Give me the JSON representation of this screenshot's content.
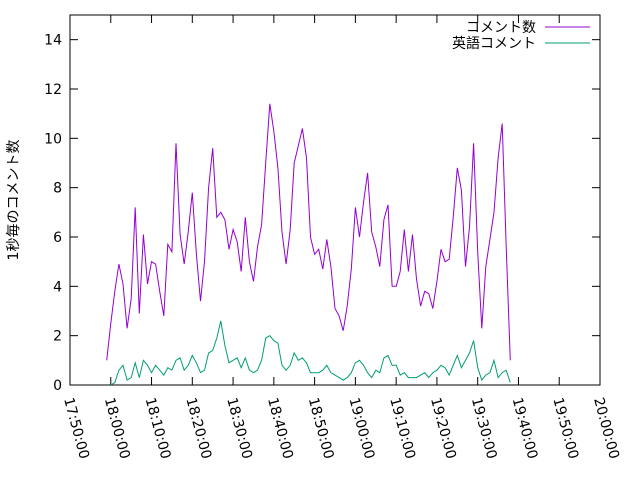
{
  "chart_data": {
    "type": "line",
    "title": "",
    "xlabel": "",
    "ylabel": "1秒毎のコメント数",
    "xlim": [
      "17:50:00",
      "20:00:00"
    ],
    "ylim": [
      0,
      15
    ],
    "yticks": [
      0,
      2,
      4,
      6,
      8,
      10,
      12,
      14
    ],
    "xticks": [
      "17:50:00",
      "18:00:00",
      "18:10:00",
      "18:20:00",
      "18:30:00",
      "18:40:00",
      "18:50:00",
      "19:00:00",
      "19:10:00",
      "19:20:00",
      "19:30:00",
      "19:40:00",
      "19:50:00",
      "20:00:00"
    ],
    "legend_position": "top-right",
    "grid": false,
    "series": [
      {
        "name": "コメント数",
        "color": "#9400d3",
        "points": [
          [
            "17:59:00",
            1.0
          ],
          [
            "18:00:00",
            2.5
          ],
          [
            "18:01:00",
            3.8
          ],
          [
            "18:02:00",
            4.9
          ],
          [
            "18:03:00",
            4.1
          ],
          [
            "18:04:00",
            2.3
          ],
          [
            "18:05:00",
            3.5
          ],
          [
            "18:06:00",
            7.2
          ],
          [
            "18:07:00",
            2.9
          ],
          [
            "18:08:00",
            6.1
          ],
          [
            "18:09:00",
            4.1
          ],
          [
            "18:10:00",
            5.0
          ],
          [
            "18:11:00",
            4.9
          ],
          [
            "18:12:00",
            3.8
          ],
          [
            "18:13:00",
            2.8
          ],
          [
            "18:14:00",
            5.7
          ],
          [
            "18:15:00",
            5.4
          ],
          [
            "18:16:00",
            9.8
          ],
          [
            "18:17:00",
            6.1
          ],
          [
            "18:18:00",
            4.9
          ],
          [
            "18:19:00",
            6.2
          ],
          [
            "18:20:00",
            7.8
          ],
          [
            "18:21:00",
            5.3
          ],
          [
            "18:22:00",
            3.4
          ],
          [
            "18:23:00",
            5.0
          ],
          [
            "18:24:00",
            8.0
          ],
          [
            "18:25:00",
            9.6
          ],
          [
            "18:26:00",
            6.8
          ],
          [
            "18:27:00",
            7.0
          ],
          [
            "18:28:00",
            6.7
          ],
          [
            "18:29:00",
            5.5
          ],
          [
            "18:30:00",
            6.3
          ],
          [
            "18:31:00",
            5.8
          ],
          [
            "18:32:00",
            4.6
          ],
          [
            "18:33:00",
            6.8
          ],
          [
            "18:34:00",
            5.0
          ],
          [
            "18:35:00",
            4.2
          ],
          [
            "18:36:00",
            5.6
          ],
          [
            "18:37:00",
            6.5
          ],
          [
            "18:38:00",
            9.0
          ],
          [
            "18:39:00",
            11.4
          ],
          [
            "18:40:00",
            10.3
          ],
          [
            "18:41:00",
            8.8
          ],
          [
            "18:42:00",
            6.2
          ],
          [
            "18:43:00",
            4.9
          ],
          [
            "18:44:00",
            6.3
          ],
          [
            "18:45:00",
            9.0
          ],
          [
            "18:46:00",
            9.7
          ],
          [
            "18:47:00",
            10.4
          ],
          [
            "18:48:00",
            9.2
          ],
          [
            "18:49:00",
            6.0
          ],
          [
            "18:50:00",
            5.3
          ],
          [
            "18:51:00",
            5.5
          ],
          [
            "18:52:00",
            4.7
          ],
          [
            "18:53:00",
            5.9
          ],
          [
            "18:54:00",
            4.8
          ],
          [
            "18:55:00",
            3.1
          ],
          [
            "18:56:00",
            2.8
          ],
          [
            "18:57:00",
            2.2
          ],
          [
            "18:58:00",
            3.2
          ],
          [
            "18:59:00",
            4.7
          ],
          [
            "19:00:00",
            7.2
          ],
          [
            "19:01:00",
            6.0
          ],
          [
            "19:02:00",
            7.4
          ],
          [
            "19:03:00",
            8.6
          ],
          [
            "19:04:00",
            6.2
          ],
          [
            "19:05:00",
            5.6
          ],
          [
            "19:06:00",
            4.8
          ],
          [
            "19:07:00",
            6.7
          ],
          [
            "19:08:00",
            7.3
          ],
          [
            "19:09:00",
            4.0
          ],
          [
            "19:10:00",
            4.0
          ],
          [
            "19:11:00",
            4.6
          ],
          [
            "19:12:00",
            6.3
          ],
          [
            "19:13:00",
            4.6
          ],
          [
            "19:14:00",
            6.1
          ],
          [
            "19:15:00",
            4.3
          ],
          [
            "19:16:00",
            3.2
          ],
          [
            "19:17:00",
            3.8
          ],
          [
            "19:18:00",
            3.7
          ],
          [
            "19:19:00",
            3.1
          ],
          [
            "19:20:00",
            4.2
          ],
          [
            "19:21:00",
            5.5
          ],
          [
            "19:22:00",
            5.0
          ],
          [
            "19:23:00",
            5.1
          ],
          [
            "19:24:00",
            6.8
          ],
          [
            "19:25:00",
            8.8
          ],
          [
            "19:26:00",
            7.9
          ],
          [
            "19:27:00",
            4.8
          ],
          [
            "19:28:00",
            6.4
          ],
          [
            "19:29:00",
            9.8
          ],
          [
            "19:30:00",
            5.4
          ],
          [
            "19:31:00",
            2.3
          ],
          [
            "19:32:00",
            4.8
          ],
          [
            "19:33:00",
            5.9
          ],
          [
            "19:34:00",
            7.0
          ],
          [
            "19:35:00",
            9.2
          ],
          [
            "19:36:00",
            10.6
          ],
          [
            "19:37:00",
            5.6
          ],
          [
            "19:38:00",
            1.0
          ]
        ]
      },
      {
        "name": "英語コメント",
        "color": "#009e73",
        "points": [
          [
            "18:00:00",
            0.0
          ],
          [
            "18:01:00",
            0.1
          ],
          [
            "18:02:00",
            0.6
          ],
          [
            "18:03:00",
            0.8
          ],
          [
            "18:04:00",
            0.2
          ],
          [
            "18:05:00",
            0.3
          ],
          [
            "18:06:00",
            0.9
          ],
          [
            "18:07:00",
            0.3
          ],
          [
            "18:08:00",
            1.0
          ],
          [
            "18:09:00",
            0.8
          ],
          [
            "18:10:00",
            0.5
          ],
          [
            "18:11:00",
            0.8
          ],
          [
            "18:12:00",
            0.6
          ],
          [
            "18:13:00",
            0.4
          ],
          [
            "18:14:00",
            0.7
          ],
          [
            "18:15:00",
            0.6
          ],
          [
            "18:16:00",
            1.0
          ],
          [
            "18:17:00",
            1.1
          ],
          [
            "18:18:00",
            0.6
          ],
          [
            "18:19:00",
            0.8
          ],
          [
            "18:20:00",
            1.2
          ],
          [
            "18:21:00",
            0.9
          ],
          [
            "18:22:00",
            0.5
          ],
          [
            "18:23:00",
            0.6
          ],
          [
            "18:24:00",
            1.3
          ],
          [
            "18:25:00",
            1.4
          ],
          [
            "18:26:00",
            1.9
          ],
          [
            "18:27:00",
            2.6
          ],
          [
            "18:28:00",
            1.6
          ],
          [
            "18:29:00",
            0.9
          ],
          [
            "18:30:00",
            1.0
          ],
          [
            "18:31:00",
            1.1
          ],
          [
            "18:32:00",
            0.7
          ],
          [
            "18:33:00",
            1.1
          ],
          [
            "18:34:00",
            0.6
          ],
          [
            "18:35:00",
            0.5
          ],
          [
            "18:36:00",
            0.6
          ],
          [
            "18:37:00",
            1.0
          ],
          [
            "18:38:00",
            1.9
          ],
          [
            "18:39:00",
            2.0
          ],
          [
            "18:40:00",
            1.8
          ],
          [
            "18:41:00",
            1.7
          ],
          [
            "18:42:00",
            0.8
          ],
          [
            "18:43:00",
            0.6
          ],
          [
            "18:44:00",
            0.8
          ],
          [
            "18:45:00",
            1.3
          ],
          [
            "18:46:00",
            1.0
          ],
          [
            "18:47:00",
            1.1
          ],
          [
            "18:48:00",
            0.9
          ],
          [
            "18:49:00",
            0.5
          ],
          [
            "18:50:00",
            0.5
          ],
          [
            "18:51:00",
            0.5
          ],
          [
            "18:52:00",
            0.6
          ],
          [
            "18:53:00",
            0.8
          ],
          [
            "18:54:00",
            0.5
          ],
          [
            "18:55:00",
            0.4
          ],
          [
            "18:56:00",
            0.3
          ],
          [
            "18:57:00",
            0.2
          ],
          [
            "18:58:00",
            0.3
          ],
          [
            "18:59:00",
            0.5
          ],
          [
            "19:00:00",
            0.9
          ],
          [
            "19:01:00",
            1.0
          ],
          [
            "19:02:00",
            0.8
          ],
          [
            "19:03:00",
            0.5
          ],
          [
            "19:04:00",
            0.3
          ],
          [
            "19:05:00",
            0.6
          ],
          [
            "19:06:00",
            0.5
          ],
          [
            "19:07:00",
            1.1
          ],
          [
            "19:08:00",
            1.2
          ],
          [
            "19:09:00",
            0.8
          ],
          [
            "19:10:00",
            0.8
          ],
          [
            "19:11:00",
            0.4
          ],
          [
            "19:12:00",
            0.5
          ],
          [
            "19:13:00",
            0.3
          ],
          [
            "19:14:00",
            0.3
          ],
          [
            "19:15:00",
            0.3
          ],
          [
            "19:16:00",
            0.4
          ],
          [
            "19:17:00",
            0.5
          ],
          [
            "19:18:00",
            0.3
          ],
          [
            "19:19:00",
            0.5
          ],
          [
            "19:20:00",
            0.6
          ],
          [
            "19:21:00",
            0.8
          ],
          [
            "19:22:00",
            0.7
          ],
          [
            "19:23:00",
            0.4
          ],
          [
            "19:24:00",
            0.8
          ],
          [
            "19:25:00",
            1.2
          ],
          [
            "19:26:00",
            0.7
          ],
          [
            "19:27:00",
            1.0
          ],
          [
            "19:28:00",
            1.3
          ],
          [
            "19:29:00",
            1.8
          ],
          [
            "19:30:00",
            0.7
          ],
          [
            "19:31:00",
            0.2
          ],
          [
            "19:32:00",
            0.4
          ],
          [
            "19:33:00",
            0.5
          ],
          [
            "19:34:00",
            1.0
          ],
          [
            "19:35:00",
            0.3
          ],
          [
            "19:36:00",
            0.5
          ],
          [
            "19:37:00",
            0.6
          ],
          [
            "19:38:00",
            0.1
          ]
        ]
      }
    ]
  }
}
